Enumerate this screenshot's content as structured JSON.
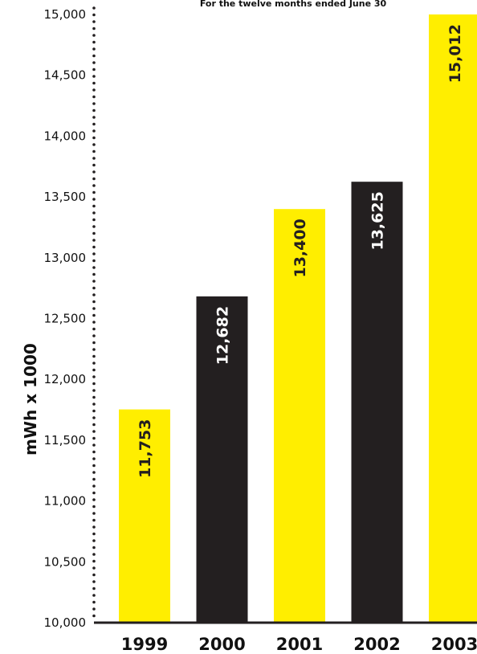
{
  "chart_data": {
    "type": "bar",
    "subtitle": "For the twelve months ended June 30",
    "ylabel": "mWh x 1000",
    "xlabel": "",
    "categories": [
      "1999",
      "2000",
      "2001",
      "2002",
      "2003"
    ],
    "values": [
      11753,
      12682,
      13400,
      13625,
      15012
    ],
    "value_labels": [
      "11,753",
      "12,682",
      "13,400",
      "13,625",
      "15,012"
    ],
    "ylim": [
      10000,
      15000
    ],
    "y_ticks": [
      10000,
      10500,
      11000,
      11500,
      12000,
      12500,
      13000,
      13500,
      14000,
      14500,
      15000
    ],
    "y_tick_labels": [
      "10,000",
      "10,500",
      "11,000",
      "11,500",
      "12,000",
      "12,500",
      "13,000",
      "13,500",
      "14,000",
      "14,500",
      "15,000"
    ],
    "bar_colors": [
      "#FFEE00",
      "#231F20",
      "#FFEE00",
      "#231F20",
      "#FFEE00"
    ],
    "value_label_colors": [
      "#231F20",
      "#FFFFFF",
      "#231F20",
      "#FFFFFF",
      "#231F20"
    ],
    "grid": false
  }
}
